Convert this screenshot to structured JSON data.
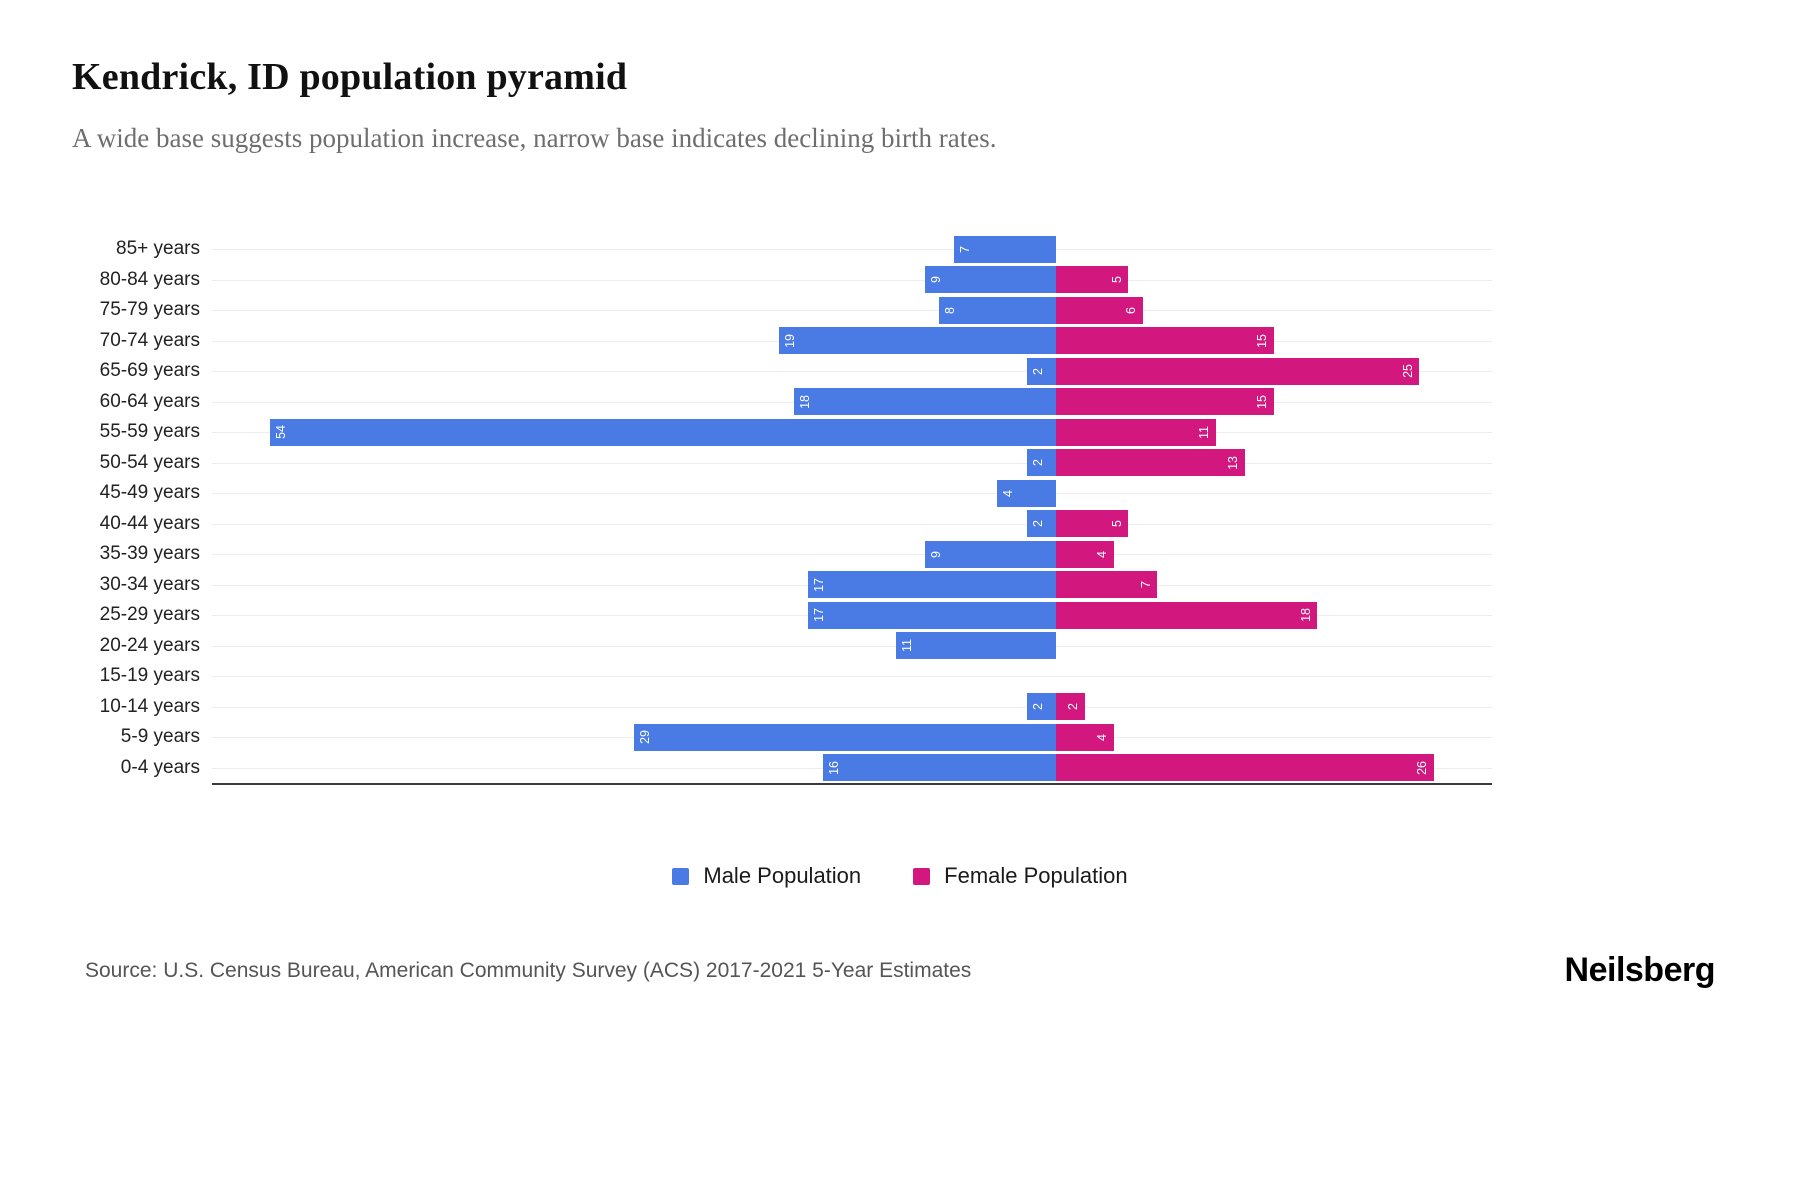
{
  "title": "Kendrick, ID population pyramid",
  "subtitle": "A wide base suggests population increase, narrow base indicates declining birth rates.",
  "legend": {
    "male_label": "Male Population",
    "female_label": "Female Population"
  },
  "source": "Source: U.S. Census Bureau, American Community Survey (ACS) 2017-2021 5-Year Estimates",
  "logo": "Neilsberg",
  "colors": {
    "male": "#4a7be5",
    "female": "#d2187f",
    "gridline": "#ededed",
    "axis": "#3a3a3a"
  },
  "chart_data": {
    "type": "bar",
    "variant": "population-pyramid",
    "orientation": "horizontal",
    "title": "Kendrick, ID population pyramid",
    "xlabel": "",
    "ylabel": "",
    "grid": true,
    "legend_position": "bottom",
    "male_axis_max": 58,
    "female_axis_max": 30,
    "categories": [
      "85+ years",
      "80-84 years",
      "75-79 years",
      "70-74 years",
      "65-69 years",
      "60-64 years",
      "55-59 years",
      "50-54 years",
      "45-49 years",
      "40-44 years",
      "35-39 years",
      "30-34 years",
      "25-29 years",
      "20-24 years",
      "15-19 years",
      "10-14 years",
      "5-9 years",
      "0-4 years"
    ],
    "series": [
      {
        "name": "Male Population",
        "color": "#4a7be5",
        "values": [
          7,
          9,
          8,
          19,
          2,
          18,
          54,
          2,
          4,
          2,
          9,
          17,
          17,
          11,
          0,
          2,
          29,
          16
        ]
      },
      {
        "name": "Female Population",
        "color": "#d2187f",
        "values": [
          0,
          5,
          6,
          15,
          25,
          15,
          11,
          13,
          0,
          5,
          4,
          7,
          18,
          0,
          0,
          2,
          4,
          26
        ]
      }
    ]
  }
}
